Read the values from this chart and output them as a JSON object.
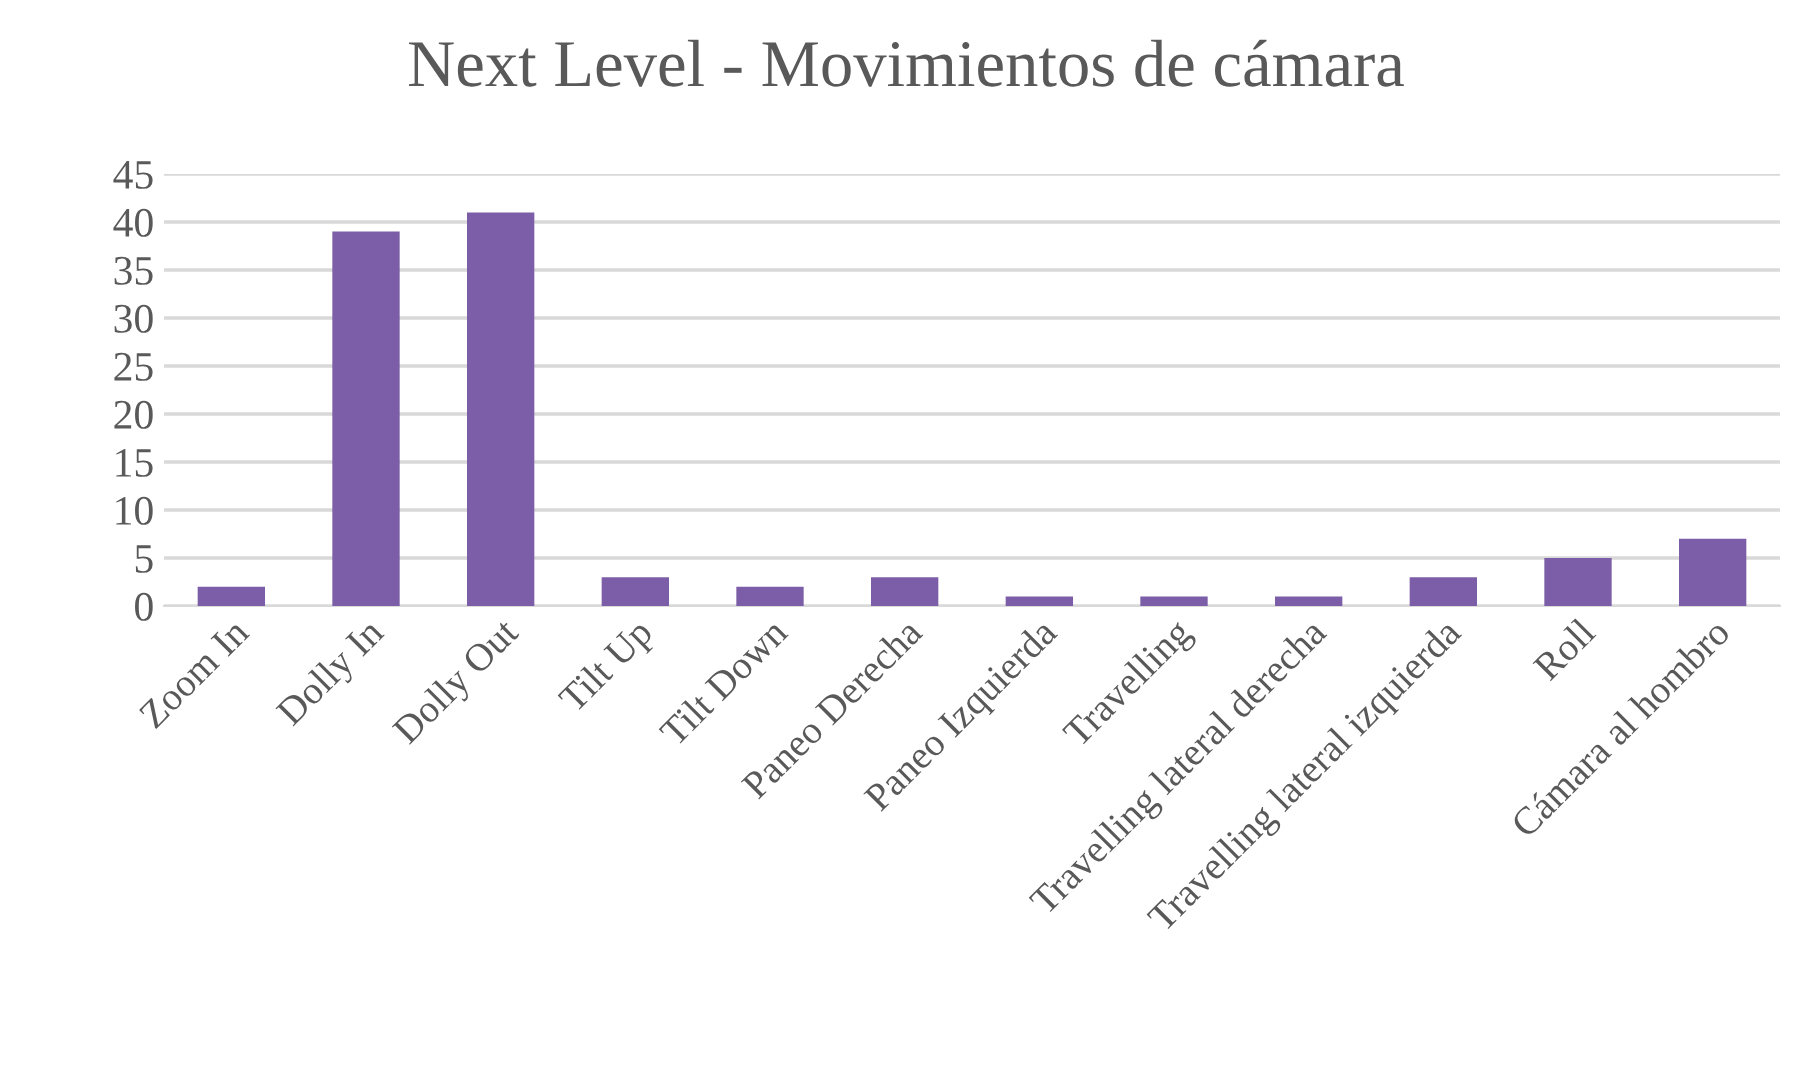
{
  "chart_data": {
    "type": "bar",
    "title": "Next Level - Movimientos de cámara",
    "categories": [
      "Zoom In",
      "Dolly In",
      "Dolly Out",
      "Tilt Up",
      "Tilt Down",
      "Paneo Derecha",
      "Paneo Izquierda",
      "Travelling",
      "Travelling lateral derecha",
      "Travelling lateral izquierda",
      "Roll",
      "Cámara al hombro"
    ],
    "values": [
      2,
      39,
      41,
      3,
      2,
      3,
      1,
      1,
      1,
      3,
      5,
      7
    ],
    "color": "#7b5ea7",
    "ylim": [
      0,
      45
    ],
    "yticks": [
      0,
      5,
      10,
      15,
      20,
      25,
      30,
      35,
      40,
      45
    ],
    "grid": "y"
  }
}
